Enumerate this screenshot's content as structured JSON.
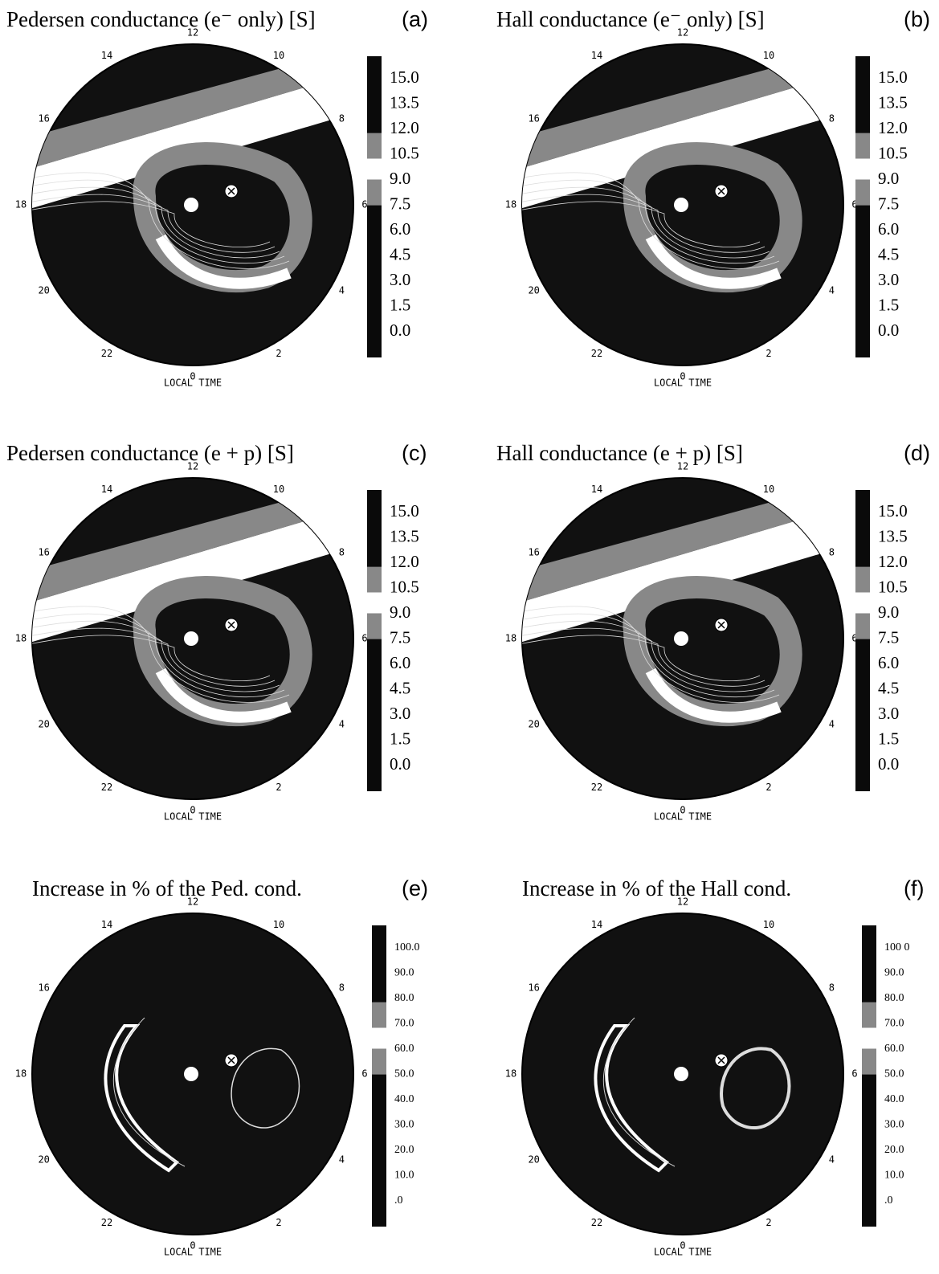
{
  "panels": [
    {
      "title": "Pedersen conductance (e⁻ only) [S]",
      "tag": "(a)",
      "hours": [
        "12",
        "10",
        "8",
        "6",
        "4",
        "2",
        "0",
        "22",
        "20",
        "18",
        "16",
        "14"
      ],
      "axis_label": "LOCAL TIME",
      "colorbar": [
        "15.0",
        "13.5",
        "12.0",
        "10.5",
        "9.0",
        "7.5",
        "6.0",
        "4.5",
        "3.0",
        "1.5",
        "0.0"
      ]
    },
    {
      "title": "Hall conductance (e⁻ only) [S]",
      "tag": "(b)",
      "hours": [
        "12",
        "10",
        "8",
        "6",
        "4",
        "2",
        "0",
        "22",
        "20",
        "18",
        "16",
        "14"
      ],
      "axis_label": "LOCAL TIME",
      "colorbar": [
        "15.0",
        "13.5",
        "12.0",
        "10.5",
        "9.0",
        "7.5",
        "6.0",
        "4.5",
        "3.0",
        "1.5",
        "0.0"
      ]
    },
    {
      "title": "Pedersen conductance (e + p) [S]",
      "tag": "(c)",
      "hours": [
        "12",
        "10",
        "8",
        "6",
        "4",
        "2",
        "0",
        "22",
        "20",
        "18",
        "16",
        "14"
      ],
      "axis_label": "LOCAL TIME",
      "colorbar": [
        "15.0",
        "13.5",
        "12.0",
        "10.5",
        "9.0",
        "7.5",
        "6.0",
        "4.5",
        "3.0",
        "1.5",
        "0.0"
      ]
    },
    {
      "title": "Hall conductance (e + p) [S]",
      "tag": "(d)",
      "hours": [
        "12",
        "10",
        "8",
        "6",
        "4",
        "2",
        "0",
        "22",
        "20",
        "18",
        "16",
        "14"
      ],
      "axis_label": "LOCAL TIME",
      "colorbar": [
        "15.0",
        "13.5",
        "12.0",
        "10.5",
        "9.0",
        "7.5",
        "6.0",
        "4.5",
        "3.0",
        "1.5",
        "0.0"
      ]
    },
    {
      "title": "Increase in % of the Ped. cond.",
      "tag": "(e)",
      "hours": [
        "12",
        "10",
        "8",
        "6",
        "4",
        "2",
        "0",
        "22",
        "20",
        "18",
        "16",
        "14"
      ],
      "axis_label": "LOCAL TIME",
      "colorbar": [
        "100.0",
        "90.0",
        "80.0",
        "70.0",
        "60.0",
        "50.0",
        "40.0",
        "30.0",
        "20.0",
        "10.0",
        ".0"
      ]
    },
    {
      "title": "Increase in % of the Hall cond.",
      "tag": "(f)",
      "hours": [
        "12",
        "10",
        "8",
        "6",
        "4",
        "2",
        "0",
        "22",
        "20",
        "18",
        "16",
        "14"
      ],
      "axis_label": "LOCAL TIME",
      "colorbar": [
        "100 0",
        "90.0",
        "80.0",
        "70.0",
        "60.0",
        "50.0",
        "40.0",
        "30.0",
        "20.0",
        "10.0",
        ".0"
      ]
    }
  ]
}
